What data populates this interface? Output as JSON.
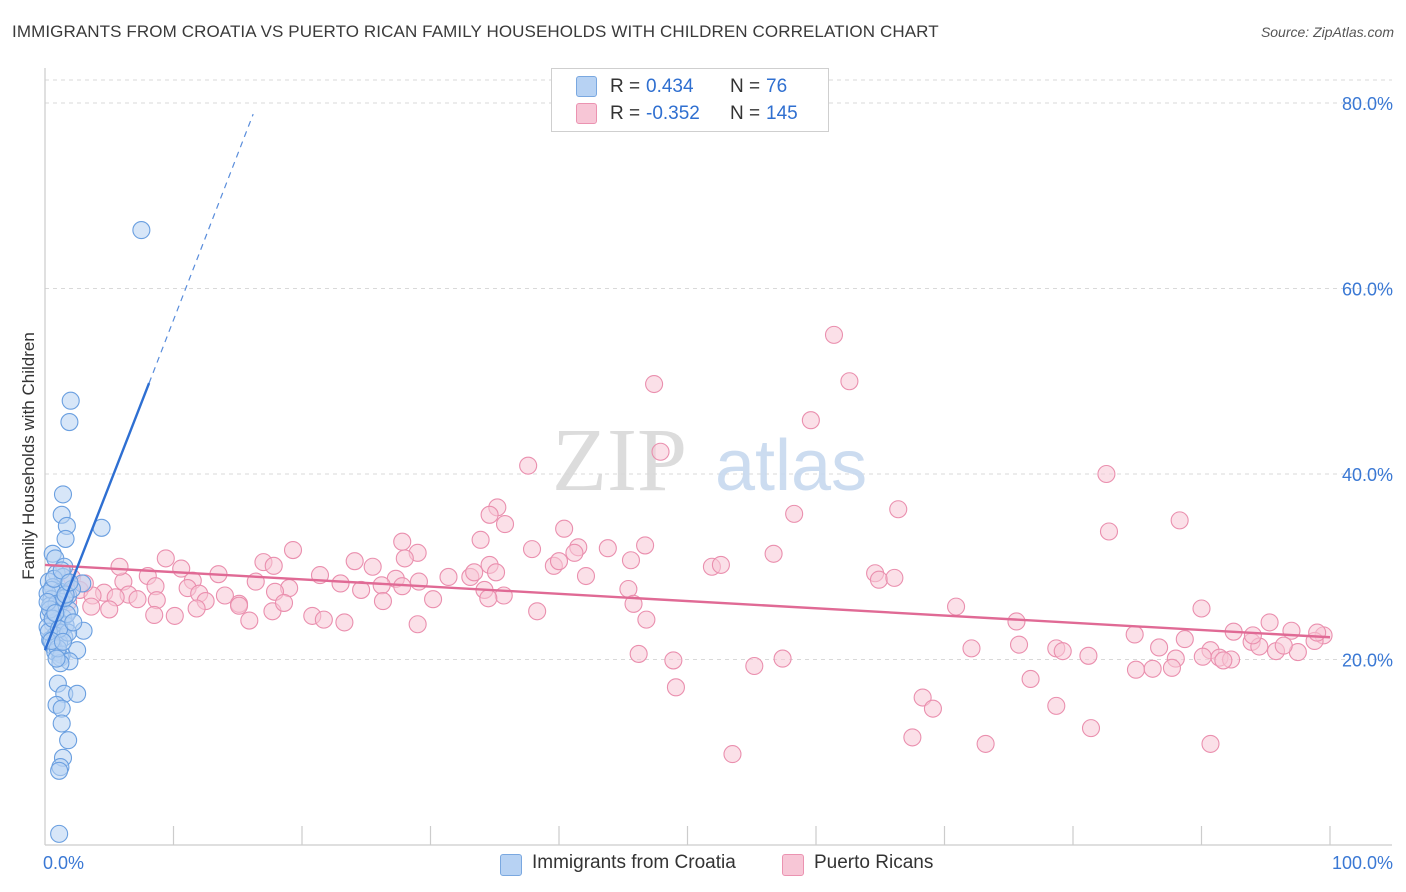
{
  "title": "IMMIGRANTS FROM CROATIA VS PUERTO RICAN FAMILY HOUSEHOLDS WITH CHILDREN CORRELATION CHART",
  "source": "Source: ZipAtlas.com",
  "watermark": {
    "zip": "ZIP",
    "atlas": "atlas"
  },
  "legend": {
    "r_label": "R =",
    "n_label": "N =",
    "rows": [
      {
        "r": "0.434",
        "n": "76"
      },
      {
        "r": "-0.352",
        "n": "145"
      }
    ]
  },
  "bottom_legend": [
    "Immigrants from Croatia",
    "Puerto Ricans"
  ],
  "colors": {
    "blue_fill": "#b7d2f3",
    "blue_stroke": "#6a9fe0",
    "blue_line": "#2e6fd2",
    "pink_fill": "#f7c6d6",
    "pink_stroke": "#ea8fae",
    "pink_line": "#e06a95",
    "axis_text": "#3a78d4",
    "grid": "#d9d9d9"
  },
  "chart_data": {
    "type": "scatter",
    "title": "IMMIGRANTS FROM CROATIA VS PUERTO RICAN FAMILY HOUSEHOLDS WITH CHILDREN CORRELATION CHART",
    "xlabel": "",
    "ylabel": "Family Households with Children",
    "xlim": [
      0,
      100
    ],
    "ylim": [
      0,
      85
    ],
    "x_tick_labels": [
      "0.0%",
      "100.0%"
    ],
    "y_ticks": [
      20,
      40,
      60,
      80
    ],
    "y_tick_labels": [
      "20.0%",
      "40.0%",
      "60.0%",
      "80.0%"
    ],
    "grid": true,
    "legend_position": "top-center",
    "series": [
      {
        "name": "Immigrants from Croatia",
        "R": 0.434,
        "N": 76,
        "trend": {
          "x": [
            0,
            8.1
          ],
          "y": [
            21,
            49.8
          ],
          "extended_x": [
            8.1,
            16.2
          ],
          "extended_y": [
            49.8,
            78.8
          ]
        },
        "points": [
          [
            7.5,
            66.3
          ],
          [
            2.0,
            47.9
          ],
          [
            1.9,
            45.6
          ],
          [
            1.4,
            37.8
          ],
          [
            1.3,
            35.6
          ],
          [
            1.7,
            34.4
          ],
          [
            4.4,
            34.2
          ],
          [
            1.6,
            33.0
          ],
          [
            0.6,
            31.4
          ],
          [
            0.8,
            30.9
          ],
          [
            1.5,
            30.0
          ],
          [
            0.9,
            29.3
          ],
          [
            1.4,
            28.9
          ],
          [
            0.3,
            28.4
          ],
          [
            2.9,
            28.2
          ],
          [
            0.6,
            27.8
          ],
          [
            1.2,
            27.3
          ],
          [
            0.2,
            27.1
          ],
          [
            1.8,
            26.9
          ],
          [
            0.5,
            26.5
          ],
          [
            1.3,
            26.2
          ],
          [
            0.4,
            25.8
          ],
          [
            1.0,
            25.6
          ],
          [
            1.9,
            25.3
          ],
          [
            0.7,
            25.1
          ],
          [
            0.3,
            24.8
          ],
          [
            1.4,
            24.5
          ],
          [
            1.0,
            24.2
          ],
          [
            0.6,
            23.9
          ],
          [
            1.6,
            23.7
          ],
          [
            0.2,
            23.5
          ],
          [
            3.0,
            23.1
          ],
          [
            1.2,
            22.9
          ],
          [
            0.8,
            22.6
          ],
          [
            1.5,
            22.4
          ],
          [
            0.4,
            22.1
          ],
          [
            1.1,
            21.8
          ],
          [
            0.6,
            21.5
          ],
          [
            2.5,
            21.0
          ],
          [
            0.8,
            20.8
          ],
          [
            1.3,
            20.5
          ],
          [
            1.2,
            20.2
          ],
          [
            1.9,
            19.8
          ],
          [
            1.2,
            19.6
          ],
          [
            1.0,
            17.4
          ],
          [
            1.5,
            16.3
          ],
          [
            2.5,
            16.3
          ],
          [
            0.9,
            15.1
          ],
          [
            1.3,
            14.7
          ],
          [
            1.3,
            13.1
          ],
          [
            1.8,
            11.3
          ],
          [
            1.4,
            9.4
          ],
          [
            1.2,
            8.4
          ],
          [
            1.1,
            8.0
          ],
          [
            1.1,
            1.2
          ],
          [
            0.5,
            27.5
          ],
          [
            0.9,
            26.0
          ],
          [
            1.7,
            24.9
          ],
          [
            0.3,
            23.0
          ],
          [
            1.0,
            21.2
          ],
          [
            0.7,
            28.7
          ],
          [
            2.1,
            27.6
          ],
          [
            1.5,
            26.6
          ],
          [
            0.4,
            25.4
          ],
          [
            1.8,
            22.9
          ],
          [
            0.9,
            20.1
          ],
          [
            1.3,
            29.6
          ],
          [
            0.6,
            24.4
          ],
          [
            1.6,
            27.0
          ],
          [
            0.2,
            26.2
          ],
          [
            1.1,
            23.3
          ],
          [
            0.5,
            22.0
          ],
          [
            1.9,
            28.3
          ],
          [
            0.8,
            25.0
          ],
          [
            1.4,
            21.9
          ],
          [
            2.2,
            24.0
          ]
        ]
      },
      {
        "name": "Puerto Ricans",
        "R": -0.352,
        "N": 145,
        "trend": {
          "x": [
            0,
            100
          ],
          "y": [
            30.2,
            22.4
          ]
        },
        "points": [
          [
            61.4,
            55.0
          ],
          [
            62.6,
            50.0
          ],
          [
            47.4,
            49.7
          ],
          [
            59.6,
            45.8
          ],
          [
            47.9,
            42.4
          ],
          [
            37.6,
            40.9
          ],
          [
            82.6,
            40.0
          ],
          [
            35.2,
            36.4
          ],
          [
            34.6,
            35.6
          ],
          [
            58.3,
            35.7
          ],
          [
            66.4,
            36.2
          ],
          [
            88.3,
            35.0
          ],
          [
            35.8,
            34.6
          ],
          [
            40.4,
            34.1
          ],
          [
            82.8,
            33.8
          ],
          [
            33.9,
            32.9
          ],
          [
            27.8,
            32.7
          ],
          [
            46.7,
            32.3
          ],
          [
            41.5,
            32.1
          ],
          [
            37.9,
            31.9
          ],
          [
            19.3,
            31.8
          ],
          [
            29.0,
            31.5
          ],
          [
            41.2,
            31.5
          ],
          [
            28.0,
            30.9
          ],
          [
            45.6,
            30.7
          ],
          [
            9.4,
            30.9
          ],
          [
            17.0,
            30.5
          ],
          [
            24.1,
            30.6
          ],
          [
            39.6,
            30.1
          ],
          [
            17.8,
            30.1
          ],
          [
            25.5,
            30.0
          ],
          [
            51.9,
            30.0
          ],
          [
            34.6,
            30.2
          ],
          [
            10.6,
            29.8
          ],
          [
            13.5,
            29.2
          ],
          [
            8.0,
            29.0
          ],
          [
            35.1,
            29.4
          ],
          [
            64.6,
            29.3
          ],
          [
            21.4,
            29.1
          ],
          [
            27.3,
            28.7
          ],
          [
            33.1,
            28.9
          ],
          [
            42.1,
            29.0
          ],
          [
            64.9,
            28.6
          ],
          [
            29.1,
            28.4
          ],
          [
            31.4,
            28.9
          ],
          [
            11.5,
            28.5
          ],
          [
            2.1,
            28.8
          ],
          [
            6.1,
            28.4
          ],
          [
            16.4,
            28.4
          ],
          [
            23.0,
            28.2
          ],
          [
            26.2,
            28.0
          ],
          [
            11.1,
            27.7
          ],
          [
            8.6,
            27.9
          ],
          [
            27.8,
            27.9
          ],
          [
            45.4,
            27.6
          ],
          [
            34.2,
            27.5
          ],
          [
            19.0,
            27.7
          ],
          [
            4.6,
            27.2
          ],
          [
            2.7,
            27.5
          ],
          [
            12.0,
            27.1
          ],
          [
            3.7,
            26.9
          ],
          [
            17.9,
            27.3
          ],
          [
            6.5,
            27.0
          ],
          [
            5.5,
            26.7
          ],
          [
            14.0,
            26.9
          ],
          [
            7.2,
            26.5
          ],
          [
            12.5,
            26.3
          ],
          [
            26.3,
            26.3
          ],
          [
            35.7,
            26.9
          ],
          [
            15.1,
            26.0
          ],
          [
            1.8,
            26.2
          ],
          [
            8.7,
            26.4
          ],
          [
            3.6,
            25.7
          ],
          [
            30.2,
            26.5
          ],
          [
            45.8,
            26.0
          ],
          [
            15.1,
            25.8
          ],
          [
            5.0,
            25.4
          ],
          [
            17.7,
            25.2
          ],
          [
            34.5,
            26.6
          ],
          [
            70.9,
            25.7
          ],
          [
            90.0,
            25.5
          ],
          [
            38.3,
            25.2
          ],
          [
            8.5,
            24.8
          ],
          [
            10.1,
            24.7
          ],
          [
            20.8,
            24.7
          ],
          [
            21.7,
            24.3
          ],
          [
            46.8,
            24.3
          ],
          [
            15.9,
            24.2
          ],
          [
            23.3,
            24.0
          ],
          [
            29.0,
            23.8
          ],
          [
            75.6,
            24.1
          ],
          [
            95.3,
            24.0
          ],
          [
            84.8,
            22.7
          ],
          [
            88.7,
            22.2
          ],
          [
            92.5,
            23.0
          ],
          [
            97.0,
            23.1
          ],
          [
            99.5,
            22.6
          ],
          [
            98.8,
            22.0
          ],
          [
            93.9,
            21.9
          ],
          [
            94.5,
            21.4
          ],
          [
            75.8,
            21.6
          ],
          [
            72.1,
            21.2
          ],
          [
            78.7,
            21.2
          ],
          [
            86.7,
            21.3
          ],
          [
            90.7,
            21.0
          ],
          [
            95.8,
            20.9
          ],
          [
            97.5,
            20.8
          ],
          [
            81.2,
            20.4
          ],
          [
            88.0,
            20.1
          ],
          [
            90.1,
            20.3
          ],
          [
            91.4,
            20.2
          ],
          [
            92.3,
            20.0
          ],
          [
            46.2,
            20.6
          ],
          [
            57.4,
            20.1
          ],
          [
            48.9,
            19.9
          ],
          [
            55.2,
            19.3
          ],
          [
            84.9,
            18.9
          ],
          [
            86.2,
            19.0
          ],
          [
            87.7,
            19.1
          ],
          [
            91.7,
            19.9
          ],
          [
            76.7,
            17.9
          ],
          [
            68.3,
            15.9
          ],
          [
            69.1,
            14.7
          ],
          [
            78.7,
            15.0
          ],
          [
            81.4,
            12.6
          ],
          [
            67.5,
            11.6
          ],
          [
            73.2,
            10.9
          ],
          [
            90.7,
            10.9
          ],
          [
            53.5,
            9.8
          ],
          [
            49.1,
            17.0
          ],
          [
            3.1,
            28.2
          ],
          [
            5.8,
            30.0
          ],
          [
            11.8,
            25.5
          ],
          [
            24.6,
            27.5
          ],
          [
            40.0,
            30.6
          ],
          [
            56.7,
            31.4
          ],
          [
            66.1,
            28.8
          ],
          [
            79.2,
            20.9
          ],
          [
            94.0,
            22.6
          ],
          [
            96.4,
            21.5
          ],
          [
            99.0,
            22.9
          ],
          [
            52.6,
            30.2
          ],
          [
            18.6,
            26.1
          ],
          [
            33.4,
            29.4
          ],
          [
            43.8,
            32.0
          ]
        ]
      }
    ]
  }
}
